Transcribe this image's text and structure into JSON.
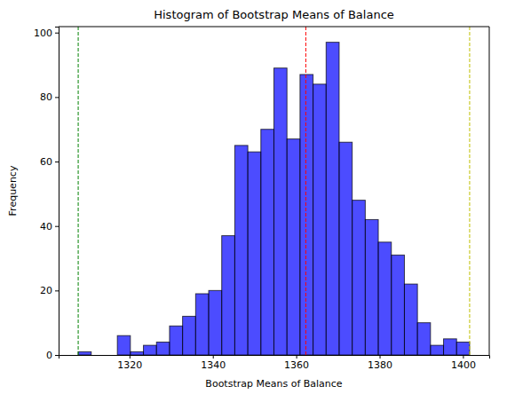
{
  "chart_data": {
    "type": "histogram",
    "title": "Histogram of Bootstrap Means of Balance",
    "x_label": "Bootstrap Means of Balance",
    "y_label": "Frequency",
    "bins": [
      1307.7,
      1310.83,
      1313.96,
      1317.09,
      1320.22,
      1323.35,
      1326.48,
      1329.61,
      1332.74,
      1335.87,
      1339.0,
      1342.13,
      1345.26,
      1348.39,
      1351.52,
      1354.65,
      1357.78,
      1360.91,
      1364.04,
      1367.17,
      1370.3,
      1373.43,
      1376.56,
      1379.69,
      1382.82,
      1385.95,
      1389.08,
      1392.21,
      1395.34,
      1398.47,
      1401.6
    ],
    "counts": [
      1,
      0,
      0,
      6,
      1,
      3,
      4,
      9,
      12,
      19,
      20,
      37,
      65,
      63,
      70,
      89,
      67,
      87,
      84,
      97,
      66,
      48,
      42,
      35,
      31,
      22,
      10,
      3,
      5,
      4
    ],
    "color": "blue",
    "vlines": [
      {
        "value": 1307.7,
        "color": "green",
        "line_style": "dashed"
      },
      {
        "value": 1362.3,
        "color": "red",
        "line_style": "dashed"
      },
      {
        "value": 1401.6,
        "color": "#bfbf00",
        "line_style": "dashed"
      }
    ],
    "xlim": [
      1303.0,
      1406.3
    ],
    "xticks": [
      1320,
      1340,
      1360,
      1380,
      1400
    ],
    "ylim": [
      0,
      101.85
    ],
    "yticks": [
      0,
      20,
      40,
      60,
      80,
      100
    ],
    "grid": false
  }
}
